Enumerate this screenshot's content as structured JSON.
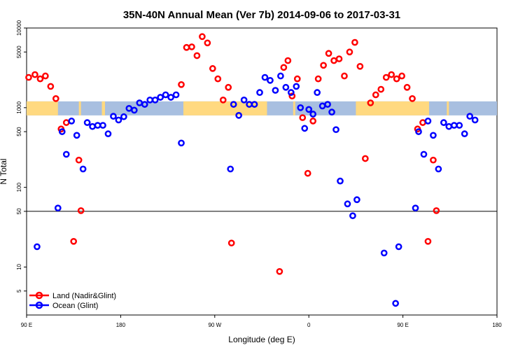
{
  "chart_data": {
    "type": "scatter",
    "title": "35N-40N Annual Mean (Ver 7b)   2014-09-06 to 2017-03-31",
    "xlabel": "Longitude (deg E)",
    "ylabel": "N Total",
    "y_scale": "log",
    "ylim": [
      2.5,
      10000
    ],
    "xlim": [
      0,
      450
    ],
    "x_ticks": [
      {
        "value": 0,
        "label": "90 E"
      },
      {
        "value": 90,
        "label": "180"
      },
      {
        "value": 180,
        "label": "90 W"
      },
      {
        "value": 270,
        "label": "0"
      },
      {
        "value": 360,
        "label": "90 E"
      },
      {
        "value": 450,
        "label": "180"
      }
    ],
    "y_ticks": [
      {
        "value": 5,
        "label": "5"
      },
      {
        "value": 10,
        "label": "10"
      },
      {
        "value": 50,
        "label": "50"
      },
      {
        "value": 100,
        "label": "100"
      },
      {
        "value": 500,
        "label": "500"
      },
      {
        "value": 1000,
        "label": "1000"
      },
      {
        "value": 5000,
        "label": "5000"
      },
      {
        "value": 10000,
        "label": "10000"
      }
    ],
    "reference_line": 50,
    "grid": false,
    "legend_position": "bottom-left",
    "land_ocean_band": {
      "y_range": [
        800,
        1200
      ],
      "land_color": "#ffd980",
      "ocean_color": "#a8bfe0",
      "land_segments": [
        [
          0,
          30
        ],
        [
          50,
          52
        ],
        [
          72,
          75
        ],
        [
          150,
          230
        ],
        [
          255,
          257
        ],
        [
          315,
          385
        ],
        [
          402,
          404
        ]
      ]
    },
    "series": [
      {
        "name": "Land (Nadir&Glint)",
        "color": "#ff0000",
        "points": [
          [
            2,
            2400
          ],
          [
            8,
            2600
          ],
          [
            13,
            2300
          ],
          [
            18,
            2500
          ],
          [
            23,
            1850
          ],
          [
            28,
            1300
          ],
          [
            33,
            540
          ],
          [
            38,
            650
          ],
          [
            45,
            21
          ],
          [
            50,
            220
          ],
          [
            52,
            51
          ],
          [
            148,
            1950
          ],
          [
            153,
            5700
          ],
          [
            158,
            5800
          ],
          [
            163,
            4500
          ],
          [
            168,
            7800
          ],
          [
            173,
            6500
          ],
          [
            178,
            3100
          ],
          [
            183,
            2300
          ],
          [
            188,
            1250
          ],
          [
            193,
            1800
          ],
          [
            196,
            20
          ],
          [
            242,
            8.8
          ],
          [
            246,
            3200
          ],
          [
            250,
            3900
          ],
          [
            254,
            1400
          ],
          [
            259,
            2300
          ],
          [
            264,
            750
          ],
          [
            269,
            150
          ],
          [
            274,
            680
          ],
          [
            279,
            2300
          ],
          [
            284,
            3400
          ],
          [
            289,
            4800
          ],
          [
            294,
            3900
          ],
          [
            299,
            4100
          ],
          [
            304,
            2500
          ],
          [
            309,
            5000
          ],
          [
            314,
            6600
          ],
          [
            319,
            3300
          ],
          [
            324,
            230
          ],
          [
            329,
            1150
          ],
          [
            334,
            1450
          ],
          [
            339,
            1700
          ],
          [
            344,
            2400
          ],
          [
            349,
            2600
          ],
          [
            354,
            2300
          ],
          [
            359,
            2500
          ],
          [
            364,
            1800
          ],
          [
            369,
            1300
          ],
          [
            374,
            540
          ],
          [
            379,
            650
          ],
          [
            384,
            21
          ],
          [
            389,
            220
          ],
          [
            392,
            51
          ]
        ]
      },
      {
        "name": "Ocean (Glint)",
        "color": "#0000ff",
        "points": [
          [
            10,
            18
          ],
          [
            30,
            55
          ],
          [
            34,
            500
          ],
          [
            38,
            260
          ],
          [
            43,
            680
          ],
          [
            48,
            450
          ],
          [
            54,
            170
          ],
          [
            58,
            650
          ],
          [
            63,
            580
          ],
          [
            68,
            600
          ],
          [
            73,
            600
          ],
          [
            78,
            470
          ],
          [
            83,
            780
          ],
          [
            88,
            700
          ],
          [
            93,
            770
          ],
          [
            98,
            980
          ],
          [
            103,
            930
          ],
          [
            108,
            1150
          ],
          [
            113,
            1100
          ],
          [
            118,
            1250
          ],
          [
            123,
            1250
          ],
          [
            128,
            1350
          ],
          [
            133,
            1450
          ],
          [
            138,
            1350
          ],
          [
            143,
            1450
          ],
          [
            148,
            360
          ],
          [
            195,
            170
          ],
          [
            198,
            1100
          ],
          [
            203,
            800
          ],
          [
            208,
            1250
          ],
          [
            213,
            1100
          ],
          [
            218,
            1100
          ],
          [
            223,
            1550
          ],
          [
            228,
            2400
          ],
          [
            233,
            2200
          ],
          [
            238,
            1650
          ],
          [
            243,
            2500
          ],
          [
            248,
            1800
          ],
          [
            253,
            1550
          ],
          [
            258,
            1850
          ],
          [
            262,
            1000
          ],
          [
            266,
            550
          ],
          [
            270,
            950
          ],
          [
            274,
            830
          ],
          [
            278,
            1550
          ],
          [
            283,
            1050
          ],
          [
            288,
            1100
          ],
          [
            292,
            880
          ],
          [
            296,
            530
          ],
          [
            300,
            120
          ],
          [
            307,
            62
          ],
          [
            312,
            44
          ],
          [
            316,
            70
          ],
          [
            353,
            3.5
          ],
          [
            356,
            18
          ],
          [
            372,
            55
          ],
          [
            375,
            500
          ],
          [
            380,
            260
          ],
          [
            384,
            680
          ],
          [
            389,
            450
          ],
          [
            394,
            170
          ],
          [
            399,
            650
          ],
          [
            404,
            580
          ],
          [
            409,
            600
          ],
          [
            414,
            600
          ],
          [
            419,
            470
          ],
          [
            424,
            780
          ],
          [
            429,
            700
          ],
          [
            342,
            15
          ]
        ]
      }
    ]
  }
}
